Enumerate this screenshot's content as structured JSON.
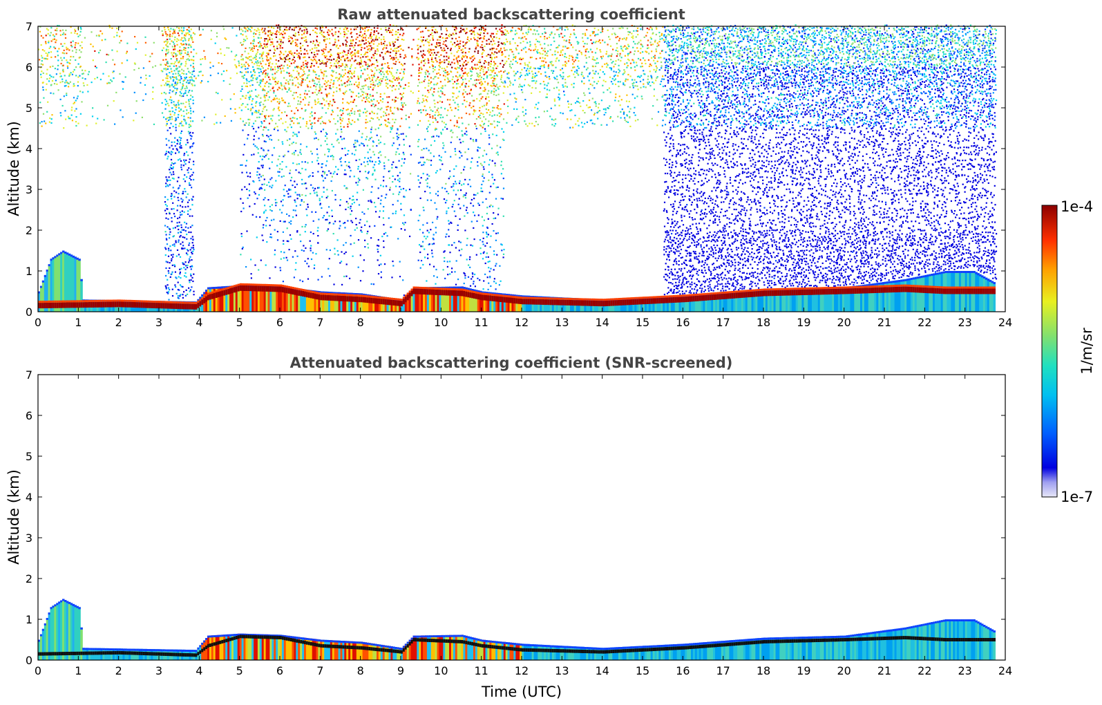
{
  "chart_data": [
    {
      "type": "heatmap",
      "title": "Raw attenuated backscattering coefficient",
      "xlabel": "",
      "ylabel": "Altitude (km)",
      "xlim": [
        0,
        24
      ],
      "ylim": [
        0,
        7
      ],
      "xticks": [
        "0",
        "1",
        "2",
        "3",
        "4",
        "5",
        "6",
        "7",
        "8",
        "9",
        "10",
        "11",
        "12",
        "13",
        "14",
        "15",
        "16",
        "17",
        "18",
        "19",
        "20",
        "21",
        "22",
        "23",
        "24"
      ],
      "yticks": [
        "0",
        "1",
        "2",
        "3",
        "4",
        "5",
        "6",
        "7"
      ],
      "data_end_hour": 23.75,
      "boundary_layer_top_km": [
        [
          0,
          0.5
        ],
        [
          0.3,
          1.3
        ],
        [
          0.6,
          1.5
        ],
        [
          1.0,
          1.3
        ],
        [
          1.1,
          0.3
        ],
        [
          3.9,
          0.25
        ],
        [
          4.2,
          0.6
        ],
        [
          5.0,
          0.65
        ],
        [
          6.0,
          0.62
        ],
        [
          7.0,
          0.5
        ],
        [
          8.0,
          0.45
        ],
        [
          9.0,
          0.3
        ],
        [
          9.3,
          0.6
        ],
        [
          10.5,
          0.62
        ],
        [
          11.0,
          0.5
        ],
        [
          12.0,
          0.4
        ],
        [
          14.0,
          0.3
        ],
        [
          16.0,
          0.4
        ],
        [
          18.0,
          0.55
        ],
        [
          20.0,
          0.6
        ],
        [
          21.5,
          0.8
        ],
        [
          22.5,
          1.0
        ],
        [
          23.2,
          1.0
        ],
        [
          23.75,
          0.7
        ]
      ],
      "aerosol_layer_km": [
        [
          0,
          0.15
        ],
        [
          2,
          0.18
        ],
        [
          3.9,
          0.12
        ],
        [
          4.2,
          0.35
        ],
        [
          5.0,
          0.58
        ],
        [
          6.0,
          0.55
        ],
        [
          7.0,
          0.35
        ],
        [
          8.0,
          0.3
        ],
        [
          9.0,
          0.2
        ],
        [
          9.3,
          0.5
        ],
        [
          10.5,
          0.45
        ],
        [
          11.0,
          0.35
        ],
        [
          12.0,
          0.25
        ],
        [
          14.0,
          0.2
        ],
        [
          16.0,
          0.3
        ],
        [
          18.0,
          0.45
        ],
        [
          20.0,
          0.5
        ],
        [
          21.5,
          0.55
        ],
        [
          22.5,
          0.5
        ],
        [
          23.75,
          0.5
        ]
      ]
    },
    {
      "type": "heatmap",
      "title": "Attenuated backscattering coefficient (SNR-screened)",
      "xlabel": "Time (UTC)",
      "ylabel": "Altitude (km)",
      "xlim": [
        0,
        24
      ],
      "ylim": [
        0,
        7
      ],
      "xticks": [
        "0",
        "1",
        "2",
        "3",
        "4",
        "5",
        "6",
        "7",
        "8",
        "9",
        "10",
        "11",
        "12",
        "13",
        "14",
        "15",
        "16",
        "17",
        "18",
        "19",
        "20",
        "21",
        "22",
        "23",
        "24"
      ],
      "yticks": [
        "0",
        "1",
        "2",
        "3",
        "4",
        "5",
        "6",
        "7"
      ],
      "data_end_hour": 23.75
    }
  ],
  "colorbar": {
    "max_label": "1e-4",
    "min_label": "1e-7",
    "unit_label": "1/m/sr",
    "colors": [
      "#e8e8f8",
      "#b8b8f0",
      "#8080f0",
      "#0000e0",
      "#0040ff",
      "#0090ff",
      "#00d0f0",
      "#30e0b0",
      "#90e070",
      "#e0f030",
      "#ffc000",
      "#ff6000",
      "#e01000",
      "#8c0000"
    ]
  }
}
